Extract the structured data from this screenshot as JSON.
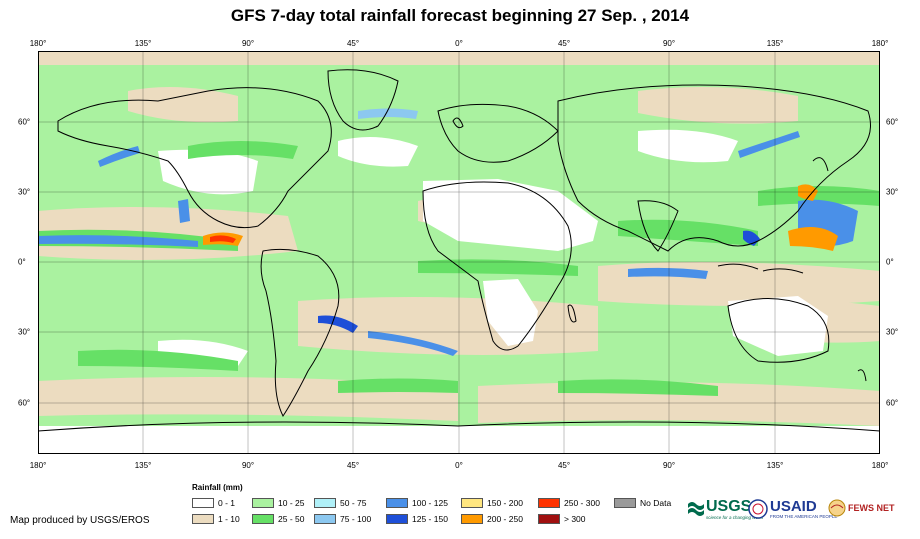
{
  "title": "GFS 7-day total rainfall forecast beginning 27 Sep. , 2014",
  "lon_ticks": [
    "180°",
    "135°",
    "90°",
    "45°",
    "0°",
    "45°",
    "90°",
    "135°",
    "180°"
  ],
  "lat_ticks": [
    "60°",
    "30°",
    "0°",
    "30°",
    "60°"
  ],
  "legend": {
    "title": "Rainfall (mm)",
    "items": [
      {
        "label": "0 - 1",
        "color": "#ffffff"
      },
      {
        "label": "1 - 10",
        "color": "#ecdcc0"
      },
      {
        "label": "10 - 25",
        "color": "#aaf2a0"
      },
      {
        "label": "25 - 50",
        "color": "#66e066"
      },
      {
        "label": "50 - 75",
        "color": "#b0f0f8"
      },
      {
        "label": "75 - 100",
        "color": "#8cc8f0"
      },
      {
        "label": "100 - 125",
        "color": "#4a90e8"
      },
      {
        "label": "125 - 150",
        "color": "#1e4fd8"
      },
      {
        "label": "150 - 200",
        "color": "#ffe680"
      },
      {
        "label": "200 - 250",
        "color": "#ff9a00"
      },
      {
        "label": "250 - 300",
        "color": "#ff3300"
      },
      {
        "label": "> 300",
        "color": "#a01010"
      },
      {
        "label": "No Data",
        "color": "#9a9a9a"
      }
    ]
  },
  "credit": "Map produced by USGS/EROS",
  "logos": {
    "usgs": "USGS",
    "usgs_tagline": "science for a changing world",
    "usaid": "USAID",
    "usaid_tagline": "FROM THE AMERICAN PEOPLE",
    "fews": "FEWS NET"
  },
  "colors": {
    "land_outline": "#000000",
    "dry": "#ecdcc0",
    "light": "#aaf2a0",
    "moderate": "#66e066",
    "heavy_blue": "#4a90e8",
    "extreme": "#ff3300"
  }
}
